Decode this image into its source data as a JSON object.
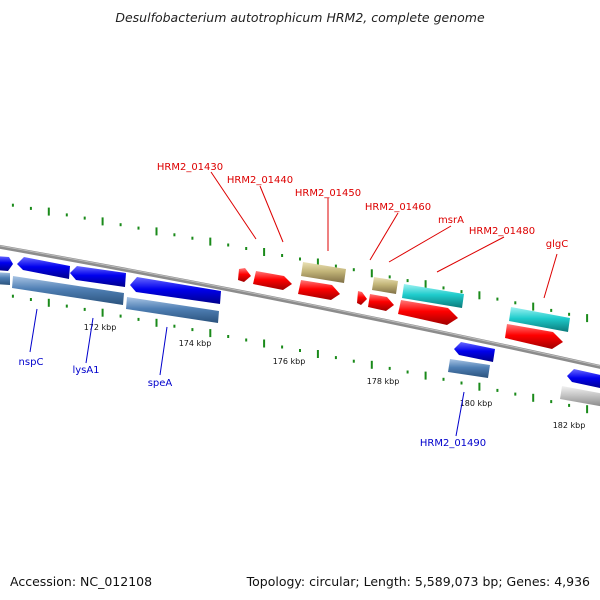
{
  "title": "Desulfobacterium autotrophicum HRM2, complete genome",
  "footer": {
    "accession": "Accession: NC_012108",
    "summary": "Topology: circular; Length: 5,589,073 bp; Genes: 4,936"
  },
  "ticks": [
    "172 kbp",
    "174 kbp",
    "176 kbp",
    "178 kbp",
    "180 kbp",
    "182 kbp"
  ],
  "genes_forward": [
    {
      "name": "HRM2_01430",
      "color": "#ff0000"
    },
    {
      "name": "HRM2_01440",
      "color": "#ff0000"
    },
    {
      "name": "HRM2_01450",
      "color": "#c8b878"
    },
    {
      "name": "HRM2_01460",
      "color": "#c8b878"
    },
    {
      "name": "msrA",
      "color": "#22cccc"
    },
    {
      "name": "HRM2_01480",
      "color": "#ff0000"
    },
    {
      "name": "glgC",
      "color": "#22cccc"
    }
  ],
  "genes_reverse": [
    {
      "name": "nspC",
      "color": "#0000ee"
    },
    {
      "name": "lysA1",
      "color": "#0000ee"
    },
    {
      "name": "speA",
      "color": "#0000ee"
    },
    {
      "name": "HRM2_01490",
      "color": "#0000ee"
    }
  ]
}
